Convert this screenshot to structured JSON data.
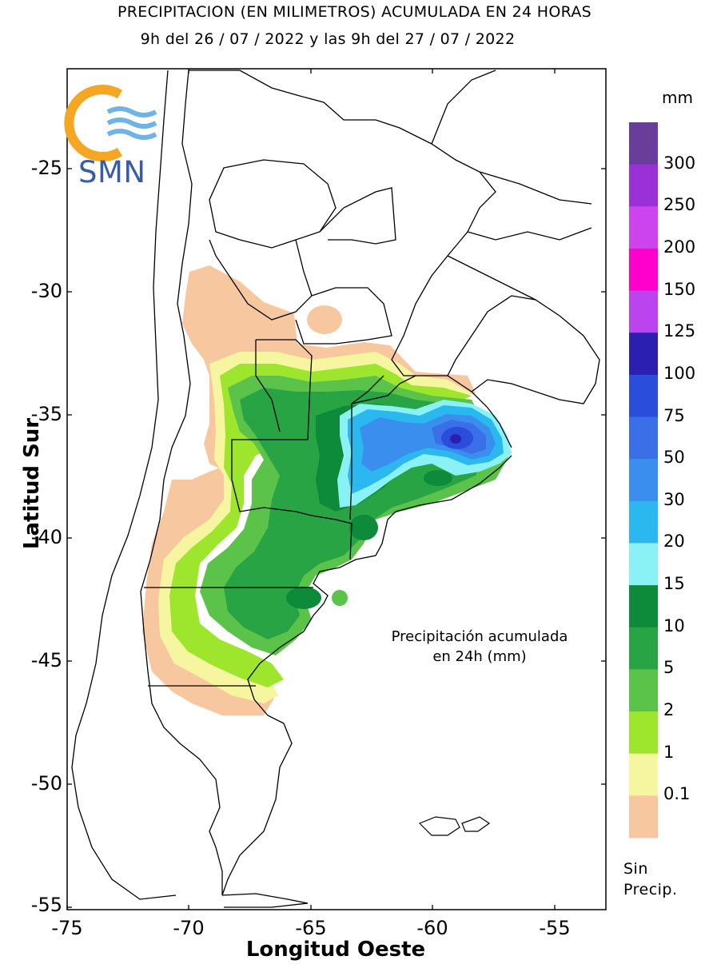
{
  "title": {
    "line1": "PRECIPITACION (EN MILIMETROS) ACUMULADA EN 24 HORAS",
    "line2": "9h del 26 / 07 / 2022  y las 9h del 27 / 07 / 2022"
  },
  "logo": {
    "text": "SMN",
    "icon": "smn-sun-waves-icon"
  },
  "axes": {
    "ylabel": "Latitud Sur",
    "xlabel": "Longitud Oeste",
    "yticks": [
      "-25",
      "-30",
      "-35",
      "-40",
      "-45",
      "-50",
      "-55"
    ],
    "xticks": [
      "-75",
      "-70",
      "-65",
      "-60",
      "-55"
    ]
  },
  "legend": {
    "unit": "mm",
    "levels": [
      {
        "label": "300",
        "color": "#6a3d9a"
      },
      {
        "label": "250",
        "color": "#9b30d9"
      },
      {
        "label": "200",
        "color": "#cc44ee"
      },
      {
        "label": "150",
        "color": "#ff00cc"
      },
      {
        "label": "125",
        "color": "#bb44ee"
      },
      {
        "label": "100",
        "color": "#2a1fb0"
      },
      {
        "label": "75",
        "color": "#2a4ddb"
      },
      {
        "label": "50",
        "color": "#3a6fe8"
      },
      {
        "label": "30",
        "color": "#3a8fee"
      },
      {
        "label": "20",
        "color": "#2ab8ee"
      },
      {
        "label": "15",
        "color": "#8af2f5"
      },
      {
        "label": "10",
        "color": "#0d8a3a"
      },
      {
        "label": "5",
        "color": "#28a445"
      },
      {
        "label": "2",
        "color": "#5cc34a"
      },
      {
        "label": "1",
        "color": "#9ee62e"
      },
      {
        "label": "0.1",
        "color": "#f7f6a0"
      },
      {
        "label": "",
        "color": "#f7c8a0"
      }
    ],
    "no_precip_line1": "Sin",
    "no_precip_line2": "Precip."
  },
  "annotation": {
    "line1": "Precipitación acumulada",
    "line2": "en 24h (mm)"
  }
}
